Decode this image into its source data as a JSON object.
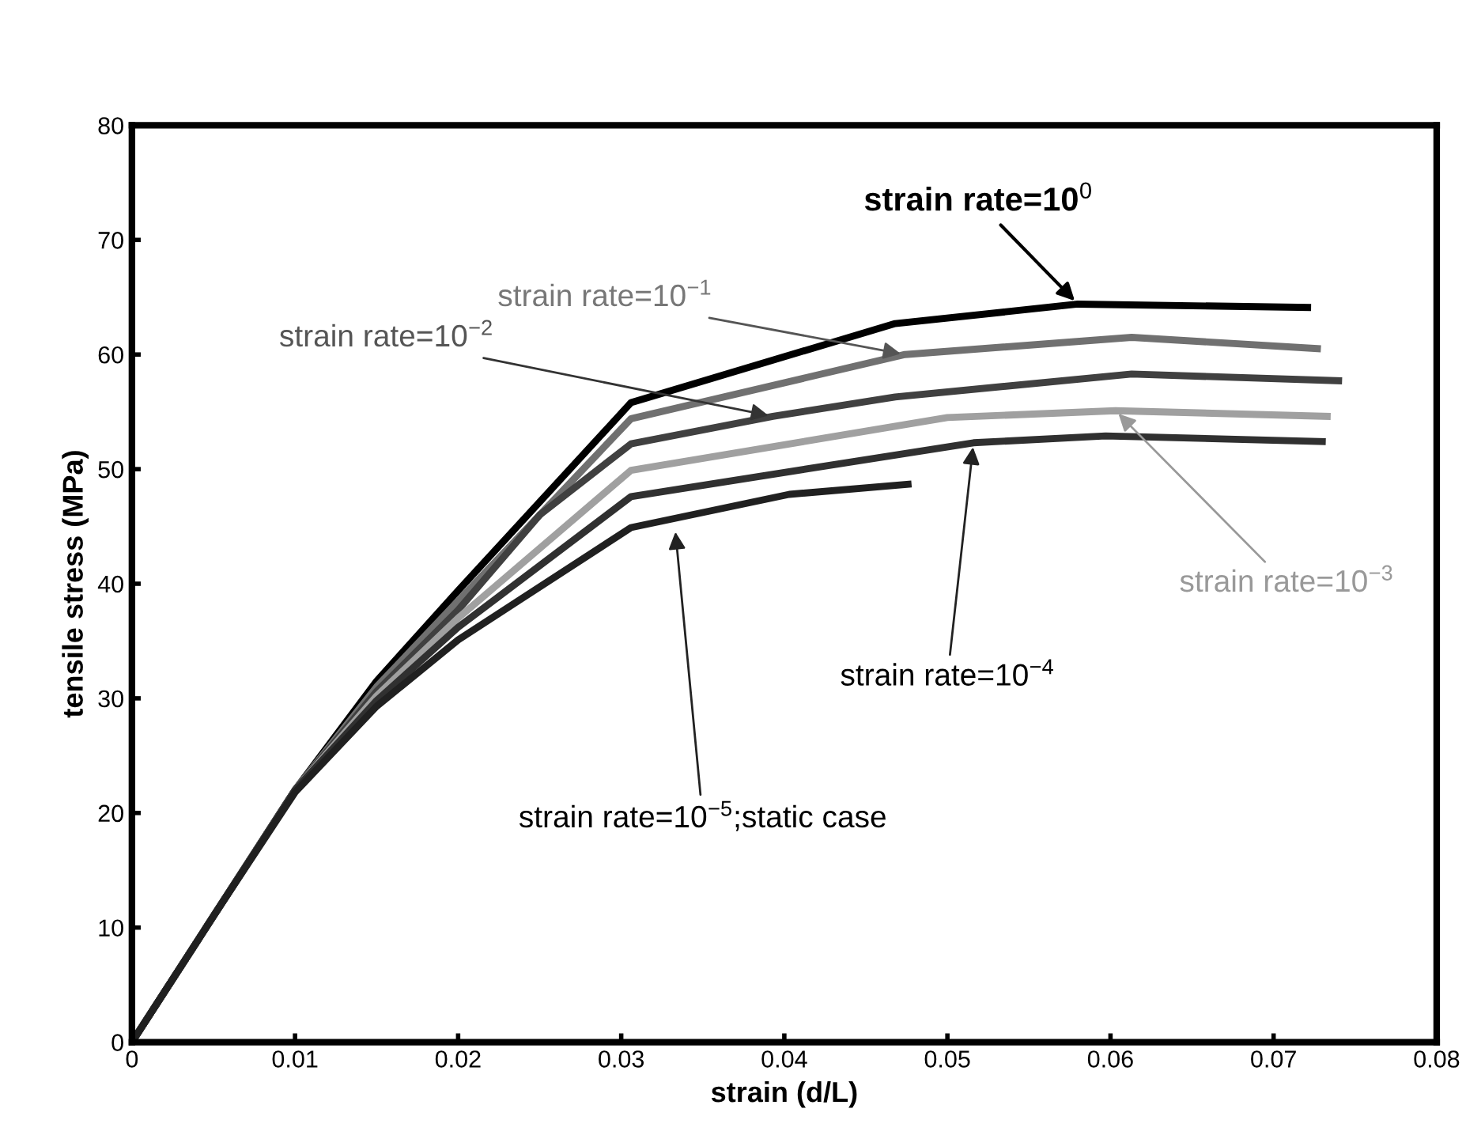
{
  "chart_data": {
    "type": "line",
    "xlabel": "strain (d/L)",
    "ylabel": "tensile stress (MPa)",
    "xlim": [
      0,
      0.08
    ],
    "xticks": [
      0,
      0.01,
      0.02,
      0.03,
      0.04,
      0.05,
      0.06,
      0.07,
      0.08
    ],
    "ylim": [
      0,
      80
    ],
    "yticks": [
      0,
      10,
      20,
      30,
      40,
      50,
      60,
      70,
      80
    ],
    "grid": false,
    "legend": false,
    "marker": "none",
    "line_style": "solid",
    "series": [
      {
        "color": "#000000",
        "x": [
          0,
          0.005,
          0.01,
          0.015,
          0.02,
          0.0306,
          0.0468,
          0.058,
          0.0723
        ],
        "values": [
          0,
          11,
          22,
          31.5,
          39.4,
          55.8,
          62.7,
          64.4,
          64.1
        ]
      },
      {
        "color": "#707070",
        "x": [
          0,
          0.005,
          0.01,
          0.015,
          0.02,
          0.0306,
          0.0474,
          0.0613,
          0.0729
        ],
        "values": [
          0,
          11,
          22,
          31,
          38.5,
          54.4,
          60,
          61.5,
          60.5
        ]
      },
      {
        "color": "#404040",
        "x": [
          0,
          0.005,
          0.01,
          0.015,
          0.02,
          0.025,
          0.0306,
          0.0393,
          0.0468,
          0.0613,
          0.0742
        ],
        "values": [
          0,
          11,
          22,
          30.6,
          37.7,
          46,
          52.2,
          54.6,
          56.3,
          58.3,
          57.7
        ]
      },
      {
        "color": "#a0a0a0",
        "x": [
          0,
          0.005,
          0.01,
          0.015,
          0.02,
          0.0306,
          0.05,
          0.0603,
          0.0735
        ],
        "values": [
          0,
          11,
          22,
          30.2,
          37,
          49.9,
          54.5,
          55.1,
          54.6
        ]
      },
      {
        "color": "#303030",
        "x": [
          0,
          0.005,
          0.01,
          0.015,
          0.02,
          0.0306,
          0.0516,
          0.0597,
          0.0732
        ],
        "values": [
          0,
          11,
          22,
          29.8,
          36.2,
          47.6,
          52.3,
          52.9,
          52.4
        ]
      },
      {
        "color": "#202020",
        "x": [
          0,
          0.005,
          0.01,
          0.015,
          0.02,
          0.0306,
          0.0403,
          0.0478
        ],
        "values": [
          0,
          11,
          21.8,
          29.3,
          35.1,
          44.9,
          47.8,
          48.7
        ]
      }
    ],
    "annotations": [
      {
        "text": "strain rate=10$^{0}$",
        "x": 0.058,
        "y": 64.4
      },
      {
        "text": "strain rate=10$^{−1}$",
        "x": 0.0474,
        "y": 60
      },
      {
        "text": "strain rate=10$^{−2}$",
        "x": 0.0393,
        "y": 54.6
      },
      {
        "text": "strain rate=10$^{−3}$",
        "x": 0.0603,
        "y": 55.1
      },
      {
        "text": "strain rate=10$^{−4}$",
        "x": 0.0516,
        "y": 52.3
      },
      {
        "text": "strain rate=10$^{−5}$;static case",
        "x": 0.0333,
        "y": 44.9
      }
    ]
  }
}
